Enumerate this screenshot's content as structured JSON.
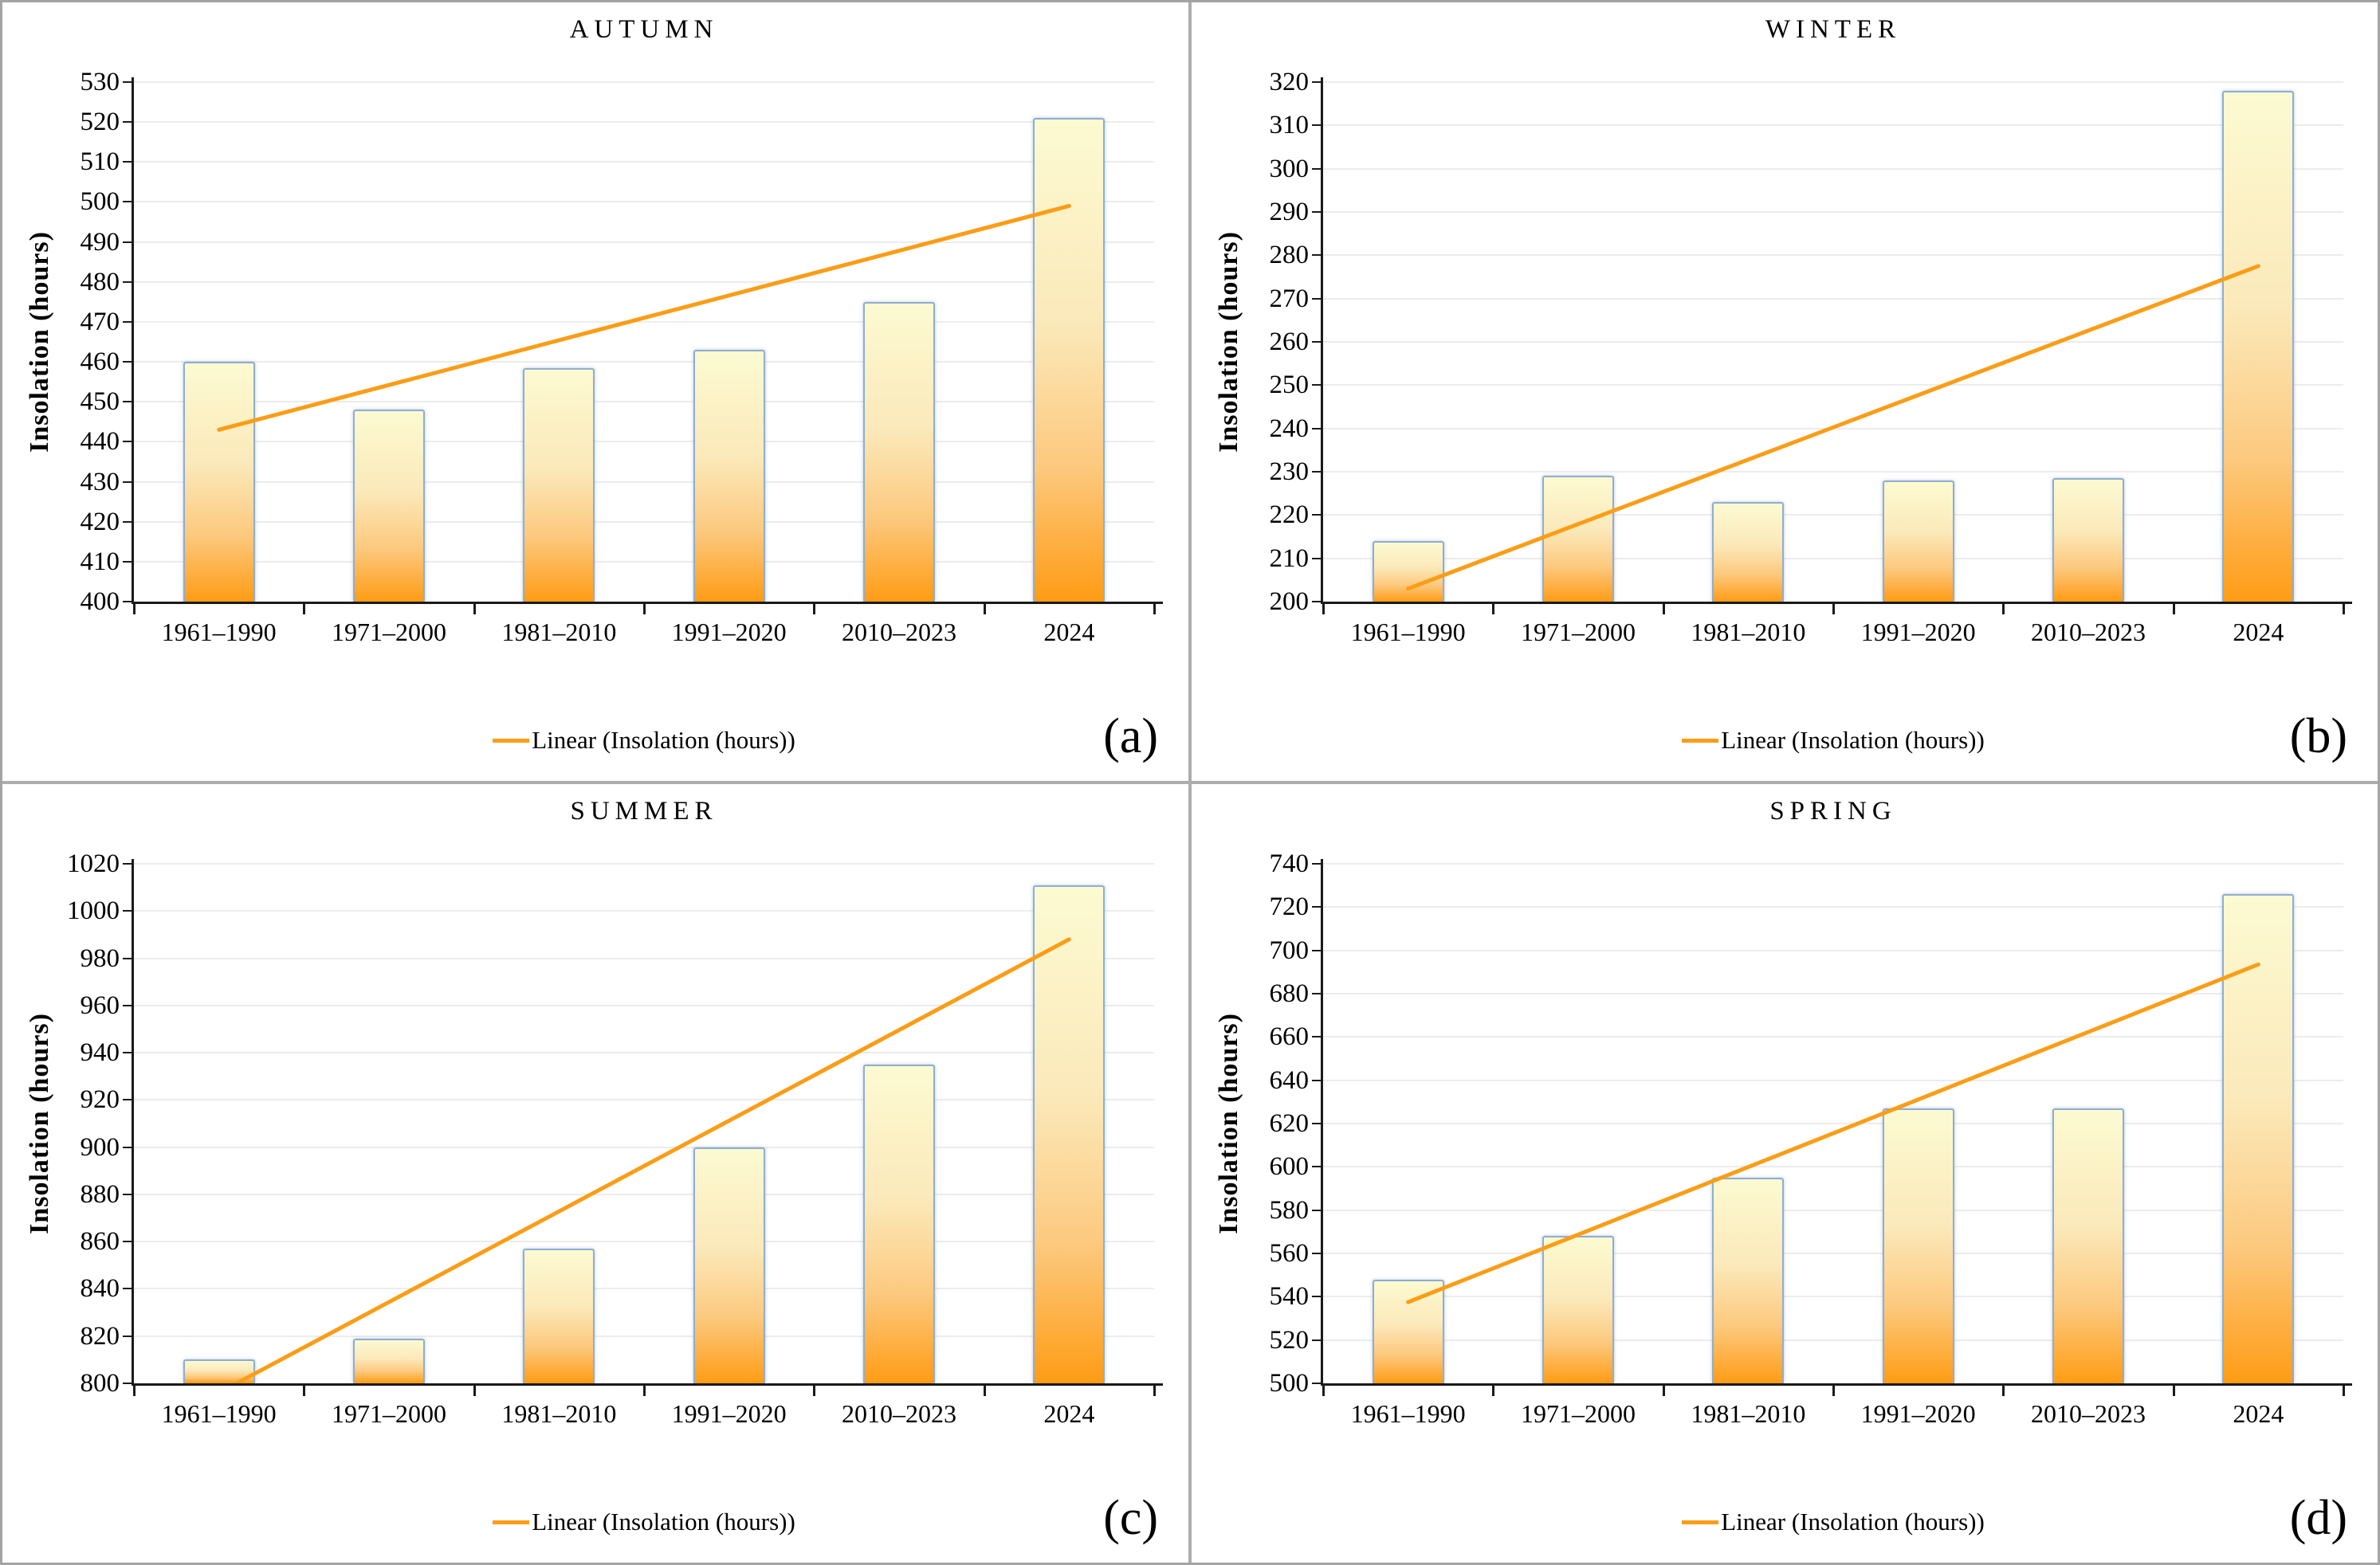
{
  "chart_data": {
    "type": "bar",
    "legend_label": "Linear (Insolation (hours))",
    "categories": [
      "1961–1990",
      "1971–2000",
      "1981–2010",
      "1991–2020",
      "2010–2023",
      "2024"
    ],
    "colors": {
      "trend_line": "#FB9D17",
      "bar_border": "#8FAECF",
      "bar_gradient_top": "#FCFAD2",
      "bar_gradient_mid1": "#FBE9BA",
      "bar_gradient_mid2": "#FCC97E",
      "bar_gradient_bottom": "#FF9C15",
      "axis": "#1a1a1a",
      "gridline": "#ececec",
      "frame": "#a3a3a3"
    },
    "panels": [
      {
        "title": "AUTUMN",
        "letter": "(a)",
        "ylabel": "Insolation (hours)",
        "xlabel": "",
        "ylim": [
          400,
          530
        ],
        "ystep": 10,
        "values": [
          460,
          448,
          458.5,
          463,
          475,
          521
        ],
        "trend": {
          "start": 443,
          "end": 499
        },
        "grid": true,
        "legend_position": "bottom-center"
      },
      {
        "title": "WINTER",
        "letter": "(b)",
        "ylabel": "Insolation (hours)",
        "xlabel": "",
        "ylim": [
          200,
          320
        ],
        "ystep": 10,
        "values": [
          214,
          229,
          223,
          228,
          228.5,
          318
        ],
        "trend": {
          "start": 203,
          "end": 277.5
        },
        "grid": true,
        "legend_position": "bottom-center"
      },
      {
        "title": "SUMMER",
        "letter": "(c)",
        "ylabel": "Insolation (hours)",
        "xlabel": "",
        "ylim": [
          800,
          1020
        ],
        "ystep": 20,
        "values": [
          810,
          819,
          857,
          900,
          935,
          1011
        ],
        "trend": {
          "start": 796,
          "end": 988
        },
        "grid": true,
        "legend_position": "bottom-center"
      },
      {
        "title": "SPRING",
        "letter": "(d)",
        "ylabel": "Insolation (hours)",
        "xlabel": "",
        "ylim": [
          500,
          740
        ],
        "ystep": 20,
        "values": [
          548,
          568,
          595,
          627,
          627,
          726
        ],
        "trend": {
          "start": 537.5,
          "end": 693.5
        },
        "grid": true,
        "legend_position": "bottom-center"
      }
    ]
  }
}
